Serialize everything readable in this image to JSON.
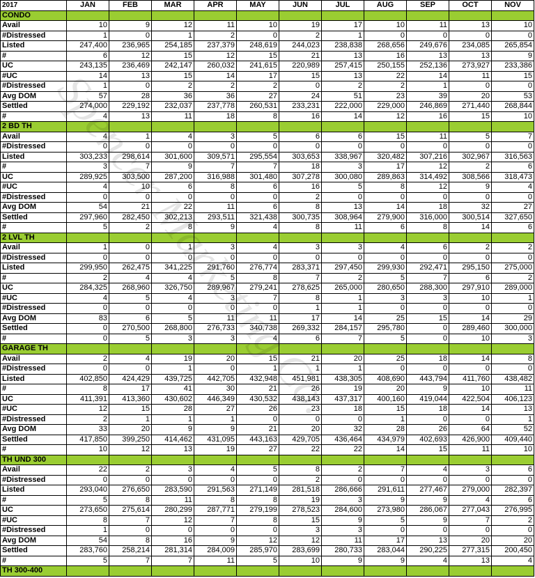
{
  "table": {
    "corner": "2017",
    "months": [
      "JAN",
      "FEB",
      "MAR",
      "APR",
      "MAY",
      "JUN",
      "JUL",
      "AUG",
      "SEP",
      "OCT",
      "NOV"
    ],
    "sections": [
      {
        "name": "CONDO",
        "rows": [
          {
            "label": "Avail",
            "values": [
              "10",
              "9",
              "12",
              "11",
              "10",
              "19",
              "17",
              "10",
              "11",
              "13",
              "10"
            ]
          },
          {
            "label": "#Distressed",
            "values": [
              "1",
              "0",
              "1",
              "2",
              "0",
              "2",
              "1",
              "0",
              "0",
              "0",
              "0"
            ]
          },
          {
            "label": "Listed",
            "values": [
              "247,400",
              "236,965",
              "254,185",
              "237,379",
              "248,619",
              "244,023",
              "238,838",
              "268,656",
              "249,676",
              "234,085",
              "265,854"
            ]
          },
          {
            "label": "#",
            "values": [
              "6",
              "12",
              "15",
              "12",
              "15",
              "21",
              "13",
              "16",
              "13",
              "13",
              "9"
            ]
          },
          {
            "label": "UC",
            "values": [
              "243,135",
              "236,469",
              "242,147",
              "260,032",
              "241,615",
              "220,989",
              "257,415",
              "250,155",
              "252,136",
              "273,927",
              "233,386"
            ]
          },
          {
            "label": "#UC",
            "values": [
              "14",
              "13",
              "15",
              "14",
              "17",
              "15",
              "13",
              "22",
              "14",
              "11",
              "15"
            ]
          },
          {
            "label": "#Distressed",
            "values": [
              "1",
              "0",
              "2",
              "2",
              "2",
              "0",
              "2",
              "2",
              "1",
              "0",
              "0"
            ]
          },
          {
            "label": "Avg DOM",
            "values": [
              "57",
              "28",
              "36",
              "36",
              "27",
              "24",
              "51",
              "23",
              "39",
              "20",
              "53"
            ]
          },
          {
            "label": "Settled",
            "values": [
              "274,000",
              "229,192",
              "232,037",
              "237,778",
              "260,531",
              "233,231",
              "222,000",
              "229,000",
              "246,869",
              "271,440",
              "268,844"
            ]
          },
          {
            "label": "#",
            "values": [
              "4",
              "13",
              "11",
              "18",
              "8",
              "16",
              "14",
              "12",
              "16",
              "15",
              "10"
            ]
          }
        ]
      },
      {
        "name": "2 BD TH",
        "rows": [
          {
            "label": "Avail",
            "values": [
              "4",
              "1",
              "4",
              "3",
              "5",
              "6",
              "6",
              "15",
              "11",
              "5",
              "7"
            ]
          },
          {
            "label": "#Distressed",
            "values": [
              "0",
              "0",
              "0",
              "0",
              "0",
              "0",
              "0",
              "0",
              "0",
              "0",
              "0"
            ]
          },
          {
            "label": "Listed",
            "values": [
              "303,233",
              "298,614",
              "301,600",
              "309,571",
              "295,554",
              "303,653",
              "338,967",
              "320,482",
              "307,216",
              "302,967",
              "316,563"
            ]
          },
          {
            "label": "#",
            "values": [
              "3",
              "7",
              "9",
              "7",
              "7",
              "18",
              "3",
              "17",
              "12",
              "2",
              "6"
            ]
          },
          {
            "label": "UC",
            "values": [
              "289,925",
              "303,500",
              "287,200",
              "316,988",
              "301,480",
              "307,278",
              "300,080",
              "289,863",
              "314,492",
              "308,566",
              "318,473"
            ]
          },
          {
            "label": "#UC",
            "values": [
              "4",
              "10",
              "6",
              "8",
              "6",
              "16",
              "5",
              "8",
              "12",
              "9",
              "4"
            ]
          },
          {
            "label": "#Distressed",
            "values": [
              "0",
              "0",
              "0",
              "0",
              "0",
              "2",
              "0",
              "0",
              "0",
              "0",
              "0"
            ]
          },
          {
            "label": "Avg DOM",
            "values": [
              "54",
              "21",
              "22",
              "11",
              "6",
              "8",
              "13",
              "14",
              "18",
              "32",
              "27"
            ]
          },
          {
            "label": "Settled",
            "values": [
              "297,960",
              "282,450",
              "302,213",
              "293,511",
              "321,438",
              "300,735",
              "308,964",
              "279,900",
              "316,000",
              "300,514",
              "327,650"
            ]
          },
          {
            "label": "#",
            "values": [
              "5",
              "2",
              "8",
              "9",
              "4",
              "8",
              "11",
              "6",
              "8",
              "14",
              "6"
            ]
          }
        ]
      },
      {
        "name": "2 LVL TH",
        "rows": [
          {
            "label": "Avail",
            "values": [
              "1",
              "0",
              "1",
              "3",
              "4",
              "3",
              "3",
              "4",
              "6",
              "2",
              "2"
            ]
          },
          {
            "label": "#Distressed",
            "values": [
              "0",
              "0",
              "0",
              "0",
              "0",
              "0",
              "0",
              "0",
              "0",
              "0",
              "0"
            ]
          },
          {
            "label": "Listed",
            "values": [
              "299,950",
              "262,475",
              "341,225",
              "291,760",
              "276,774",
              "283,371",
              "297,450",
              "299,930",
              "292,471",
              "295,150",
              "275,000"
            ]
          },
          {
            "label": "#",
            "values": [
              "2",
              "4",
              "4",
              "5",
              "8",
              "7",
              "2",
              "5",
              "7",
              "6",
              "2"
            ]
          },
          {
            "label": "UC",
            "values": [
              "284,325",
              "268,960",
              "326,750",
              "289,967",
              "279,241",
              "278,625",
              "265,000",
              "280,650",
              "288,300",
              "297,910",
              "289,000"
            ]
          },
          {
            "label": "#UC",
            "values": [
              "4",
              "5",
              "4",
              "3",
              "7",
              "8",
              "1",
              "3",
              "3",
              "10",
              "1"
            ]
          },
          {
            "label": "#Distressed",
            "values": [
              "0",
              "0",
              "0",
              "0",
              "0",
              "1",
              "1",
              "0",
              "0",
              "0",
              "0"
            ]
          },
          {
            "label": "Avg DOM",
            "values": [
              "83",
              "6",
              "5",
              "11",
              "11",
              "17",
              "14",
              "25",
              "15",
              "14",
              "29"
            ]
          },
          {
            "label": "Settled",
            "values": [
              "0",
              "270,500",
              "268,800",
              "276,733",
              "340,738",
              "269,332",
              "284,157",
              "295,780",
              "0",
              "289,460",
              "300,000"
            ]
          },
          {
            "label": "#",
            "values": [
              "0",
              "5",
              "3",
              "3",
              "4",
              "6",
              "7",
              "5",
              "0",
              "10",
              "3"
            ]
          }
        ]
      },
      {
        "name": "GARAGE TH",
        "rows": [
          {
            "label": "Avail",
            "values": [
              "2",
              "4",
              "19",
              "20",
              "15",
              "21",
              "20",
              "25",
              "18",
              "14",
              "8"
            ]
          },
          {
            "label": "#Distressed",
            "values": [
              "0",
              "0",
              "1",
              "0",
              "1",
              "1",
              "1",
              "0",
              "0",
              "0",
              "0"
            ]
          },
          {
            "label": "Listed",
            "values": [
              "402,850",
              "424,429",
              "439,725",
              "442,705",
              "432,948",
              "451,981",
              "438,305",
              "408,690",
              "443,794",
              "411,760",
              "438,482"
            ]
          },
          {
            "label": "#",
            "values": [
              "8",
              "17",
              "41",
              "30",
              "21",
              "26",
              "19",
              "20",
              "9",
              "10",
              "11"
            ]
          },
          {
            "label": "UC",
            "values": [
              "411,391",
              "413,360",
              "430,602",
              "446,349",
              "430,532",
              "438,143",
              "437,317",
              "400,160",
              "419,044",
              "422,504",
              "406,123"
            ]
          },
          {
            "label": "#UC",
            "values": [
              "12",
              "15",
              "28",
              "27",
              "26",
              "23",
              "18",
              "15",
              "18",
              "14",
              "13"
            ]
          },
          {
            "label": "#Distressed",
            "values": [
              "2",
              "1",
              "1",
              "1",
              "0",
              "0",
              "0",
              "1",
              "0",
              "0",
              "1"
            ]
          },
          {
            "label": "Avg DOM",
            "values": [
              "33",
              "20",
              "9",
              "9",
              "21",
              "20",
              "32",
              "28",
              "26",
              "64",
              "52"
            ]
          },
          {
            "label": "Settled",
            "values": [
              "417,850",
              "399,250",
              "414,462",
              "431,095",
              "443,163",
              "429,705",
              "436,464",
              "434,979",
              "402,693",
              "426,900",
              "409,440"
            ]
          },
          {
            "label": "#",
            "values": [
              "10",
              "12",
              "13",
              "19",
              "27",
              "22",
              "22",
              "14",
              "15",
              "11",
              "10"
            ]
          }
        ]
      },
      {
        "name": "TH UND 300",
        "rows": [
          {
            "label": "Avail",
            "values": [
              "22",
              "2",
              "3",
              "4",
              "5",
              "8",
              "2",
              "7",
              "4",
              "3",
              "6"
            ]
          },
          {
            "label": "#Distressed",
            "values": [
              "0",
              "0",
              "0",
              "0",
              "0",
              "2",
              "0",
              "0",
              "0",
              "0",
              "0"
            ]
          },
          {
            "label": "Listed",
            "values": [
              "293,040",
              "276,650",
              "283,590",
              "291,563",
              "271,149",
              "281,518",
              "286,666",
              "291,611",
              "277,467",
              "279,000",
              "282,397"
            ]
          },
          {
            "label": "#",
            "values": [
              "5",
              "8",
              "11",
              "8",
              "8",
              "19",
              "3",
              "9",
              "9",
              "4",
              "6"
            ]
          },
          {
            "label": "UC",
            "values": [
              "273,650",
              "275,614",
              "280,299",
              "287,771",
              "279,199",
              "278,523",
              "284,600",
              "273,980",
              "286,067",
              "277,043",
              "276,995"
            ]
          },
          {
            "label": "#UC",
            "values": [
              "8",
              "7",
              "12",
              "7",
              "8",
              "15",
              "9",
              "5",
              "9",
              "7",
              "2"
            ]
          },
          {
            "label": "#Distressed",
            "values": [
              "1",
              "0",
              "0",
              "0",
              "0",
              "3",
              "3",
              "0",
              "0",
              "0",
              "0"
            ]
          },
          {
            "label": "Avg DOM",
            "values": [
              "54",
              "8",
              "16",
              "9",
              "12",
              "12",
              "11",
              "17",
              "13",
              "20",
              "20"
            ]
          },
          {
            "label": "Settled",
            "values": [
              "283,760",
              "258,214",
              "281,314",
              "284,009",
              "285,970",
              "283,699",
              "280,733",
              "283,044",
              "290,225",
              "277,315",
              "200,450"
            ]
          },
          {
            "label": "#",
            "values": [
              "5",
              "7",
              "7",
              "11",
              "5",
              "10",
              "9",
              "9",
              "4",
              "13",
              "4"
            ]
          }
        ]
      },
      {
        "name": "TH 300-400",
        "rows": []
      }
    ]
  },
  "watermark": "Spencer Marketing Co."
}
